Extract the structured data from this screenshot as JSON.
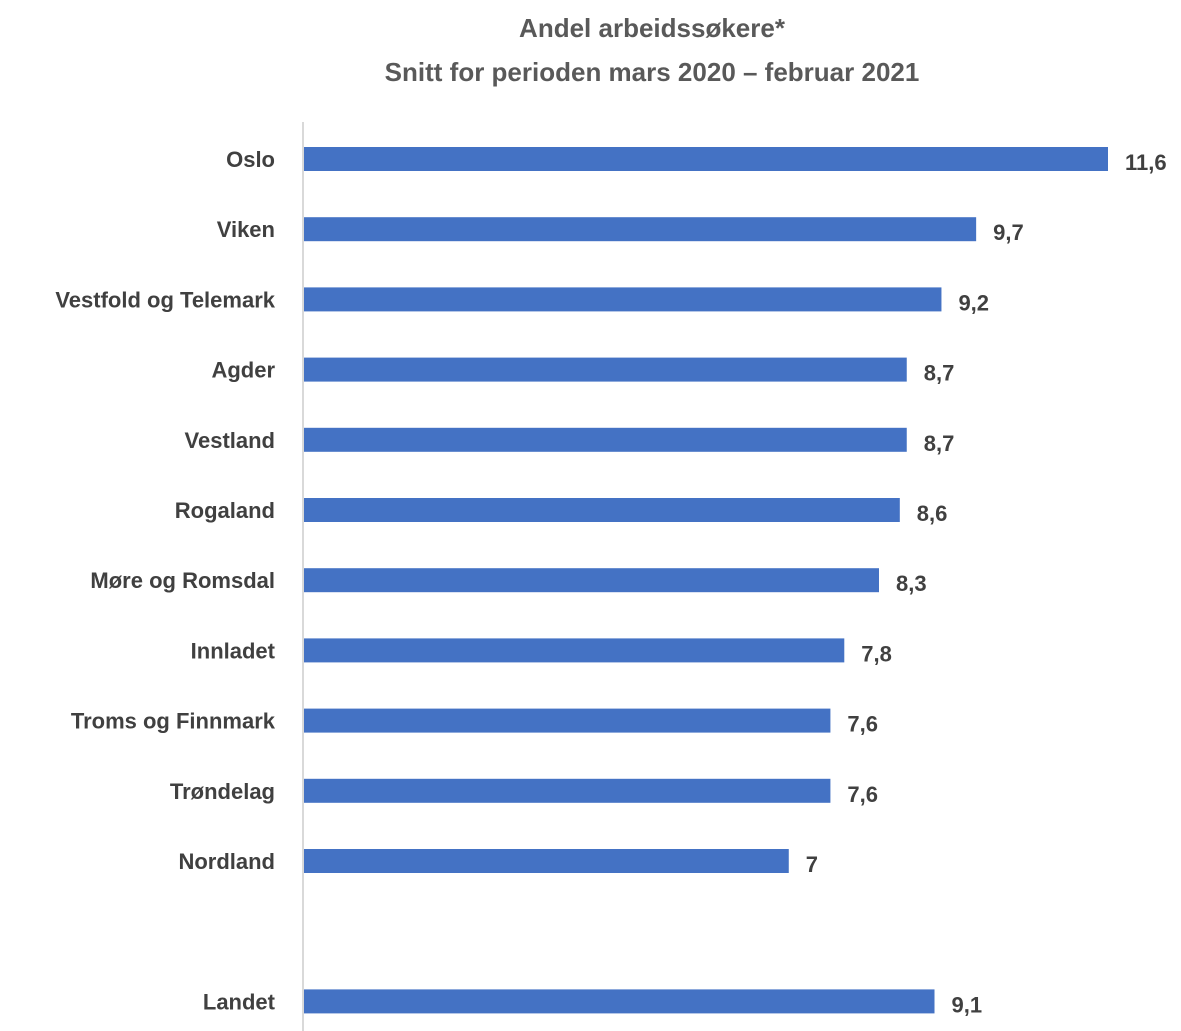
{
  "chart_data": {
    "type": "bar",
    "orientation": "horizontal",
    "title": "Andel arbeidssøkere*",
    "subtitle": "Snitt for perioden mars 2020 – februar 2021",
    "xlabel": "",
    "ylabel": "",
    "grid": false,
    "xlim": [
      0,
      11.6
    ],
    "categories": [
      "Oslo",
      "Viken",
      "Vestfold og Telemark",
      "Agder",
      "Vestland",
      "Rogaland",
      "Møre og Romsdal",
      "Innladet",
      "Troms og Finnmark",
      "Trøndelag",
      "Nordland",
      "",
      "Landet"
    ],
    "values": [
      11.6,
      9.7,
      9.2,
      8.7,
      8.7,
      8.6,
      8.3,
      7.8,
      7.6,
      7.6,
      7.0,
      null,
      9.1
    ],
    "value_labels": [
      "11,6",
      "9,7",
      "9,2",
      "8,7",
      "8,7",
      "8,6",
      "8,3",
      "7,8",
      "7,6",
      "7,6",
      "7",
      "",
      "9,1"
    ],
    "bar_color": "#4472C4",
    "axis_color": "#D9D9D9"
  }
}
